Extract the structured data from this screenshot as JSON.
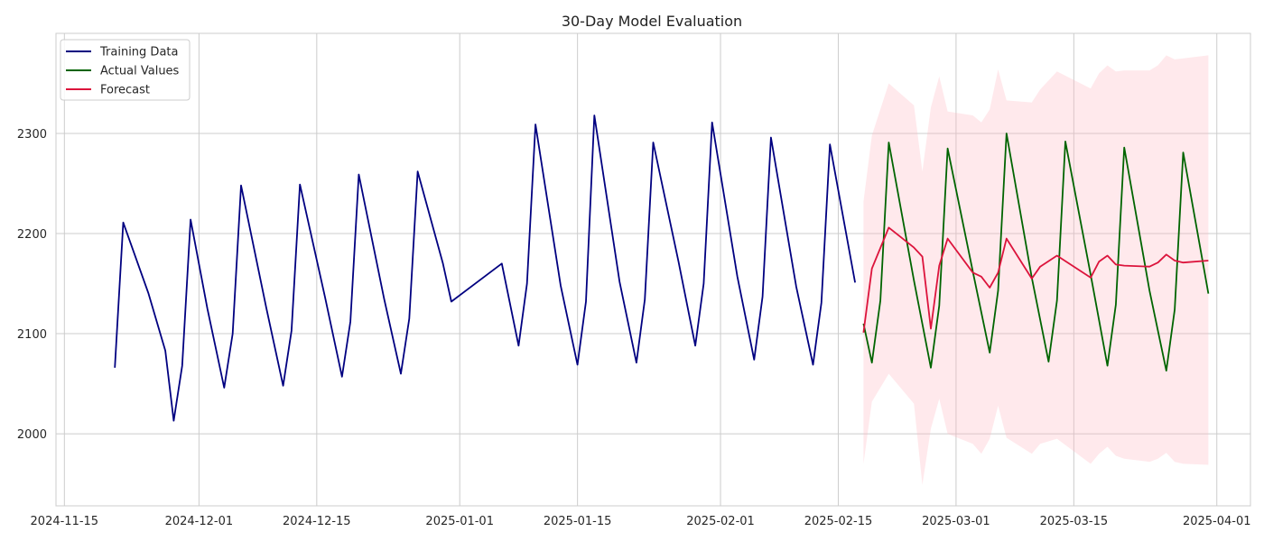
{
  "chart_data": {
    "type": "line",
    "title": "30-Day Model Evaluation",
    "xlabel": "",
    "ylabel": "",
    "x_axis_type": "date",
    "xlim": [
      "2024-11-14",
      "2025-04-05"
    ],
    "ylim": [
      1928,
      2400
    ],
    "x_ticks": [
      "2024-11-15",
      "2024-12-01",
      "2024-12-15",
      "2025-01-01",
      "2025-01-15",
      "2025-02-01",
      "2025-02-15",
      "2025-03-01",
      "2025-03-15",
      "2025-04-01"
    ],
    "y_ticks": [
      2000,
      2100,
      2200,
      2300
    ],
    "grid": true,
    "legend_position": "top-left",
    "series": [
      {
        "name": "Training Data",
        "color": "#000080",
        "x": [
          "2024-11-21",
          "2024-11-22",
          "2024-11-25",
          "2024-11-27",
          "2024-11-28",
          "2024-11-29",
          "2024-11-30",
          "2024-12-02",
          "2024-12-04",
          "2024-12-05",
          "2024-12-06",
          "2024-12-09",
          "2024-12-11",
          "2024-12-12",
          "2024-12-13",
          "2024-12-16",
          "2024-12-18",
          "2024-12-19",
          "2024-12-20",
          "2024-12-23",
          "2024-12-25",
          "2024-12-26",
          "2024-12-27",
          "2024-12-30",
          "2024-12-31",
          "2025-01-06",
          "2025-01-08",
          "2025-01-09",
          "2025-01-10",
          "2025-01-13",
          "2025-01-15",
          "2025-01-16",
          "2025-01-17",
          "2025-01-20",
          "2025-01-22",
          "2025-01-23",
          "2025-01-24",
          "2025-01-27",
          "2025-01-29",
          "2025-01-30",
          "2025-01-31",
          "2025-02-03",
          "2025-02-05",
          "2025-02-06",
          "2025-02-07",
          "2025-02-10",
          "2025-02-12",
          "2025-02-13",
          "2025-02-14",
          "2025-02-17"
        ],
        "y": [
          2066,
          2211,
          2140,
          2083,
          2013,
          2068,
          2214,
          2125,
          2046,
          2100,
          2248,
          2126,
          2048,
          2103,
          2249,
          2136,
          2057,
          2112,
          2259,
          2135,
          2060,
          2115,
          2262,
          2170,
          2132,
          2170,
          2088,
          2150,
          2309,
          2148,
          2069,
          2132,
          2318,
          2152,
          2071,
          2134,
          2291,
          2172,
          2088,
          2150,
          2311,
          2157,
          2074,
          2137,
          2296,
          2147,
          2069,
          2131,
          2289,
          2151
        ]
      },
      {
        "name": "Actual Values",
        "color": "#006400",
        "x": [
          "2025-02-18",
          "2025-02-19",
          "2025-02-20",
          "2025-02-21",
          "2025-02-24",
          "2025-02-26",
          "2025-02-27",
          "2025-02-28",
          "2025-03-03",
          "2025-03-05",
          "2025-03-06",
          "2025-03-07",
          "2025-03-10",
          "2025-03-12",
          "2025-03-13",
          "2025-03-14",
          "2025-03-17",
          "2025-03-19",
          "2025-03-20",
          "2025-03-21",
          "2025-03-24",
          "2025-03-26",
          "2025-03-27",
          "2025-03-28",
          "2025-03-31"
        ],
        "y": [
          2110,
          2071,
          2133,
          2291,
          2153,
          2066,
          2128,
          2285,
          2162,
          2081,
          2143,
          2300,
          2156,
          2072,
          2133,
          2292,
          2159,
          2068,
          2129,
          2286,
          2143,
          2063,
          2124,
          2281,
          2140
        ]
      },
      {
        "name": "Forecast",
        "color": "#DC143C",
        "x": [
          "2025-02-18",
          "2025-02-19",
          "2025-02-21",
          "2025-02-24",
          "2025-02-25",
          "2025-02-26",
          "2025-02-27",
          "2025-02-28",
          "2025-03-03",
          "2025-03-04",
          "2025-03-05",
          "2025-03-06",
          "2025-03-07",
          "2025-03-10",
          "2025-03-11",
          "2025-03-13",
          "2025-03-17",
          "2025-03-18",
          "2025-03-19",
          "2025-03-20",
          "2025-03-21",
          "2025-03-24",
          "2025-03-25",
          "2025-03-26",
          "2025-03-27",
          "2025-03-28",
          "2025-03-31"
        ],
        "y": [
          2101,
          2165,
          2206,
          2186,
          2177,
          2105,
          2168,
          2195,
          2161,
          2157,
          2146,
          2161,
          2195,
          2155,
          2167,
          2178,
          2156,
          2172,
          2178,
          2169,
          2168,
          2167,
          2171,
          2179,
          2173,
          2171,
          2173
        ]
      }
    ],
    "confidence_band": {
      "color": "#ffb6c1",
      "x": [
        "2025-02-18",
        "2025-02-19",
        "2025-02-21",
        "2025-02-24",
        "2025-02-25",
        "2025-02-26",
        "2025-02-27",
        "2025-02-28",
        "2025-03-03",
        "2025-03-04",
        "2025-03-05",
        "2025-03-06",
        "2025-03-07",
        "2025-03-10",
        "2025-03-11",
        "2025-03-13",
        "2025-03-17",
        "2025-03-18",
        "2025-03-19",
        "2025-03-20",
        "2025-03-21",
        "2025-03-24",
        "2025-03-25",
        "2025-03-26",
        "2025-03-27",
        "2025-03-28",
        "2025-03-31"
      ],
      "lower": [
        1970,
        2032,
        2060,
        2030,
        1949,
        2005,
        2035,
        2000,
        1990,
        1980,
        1995,
        2028,
        1996,
        1980,
        1990,
        1995,
        1970,
        1980,
        1987,
        1978,
        1975,
        1972,
        1975,
        1981,
        1972,
        1970,
        1969
      ],
      "upper": [
        2232,
        2298,
        2350,
        2328,
        2262,
        2326,
        2357,
        2322,
        2318,
        2311,
        2324,
        2364,
        2333,
        2331,
        2344,
        2362,
        2345,
        2360,
        2368,
        2362,
        2363,
        2363,
        2368,
        2378,
        2374,
        2375,
        2378
      ]
    }
  }
}
